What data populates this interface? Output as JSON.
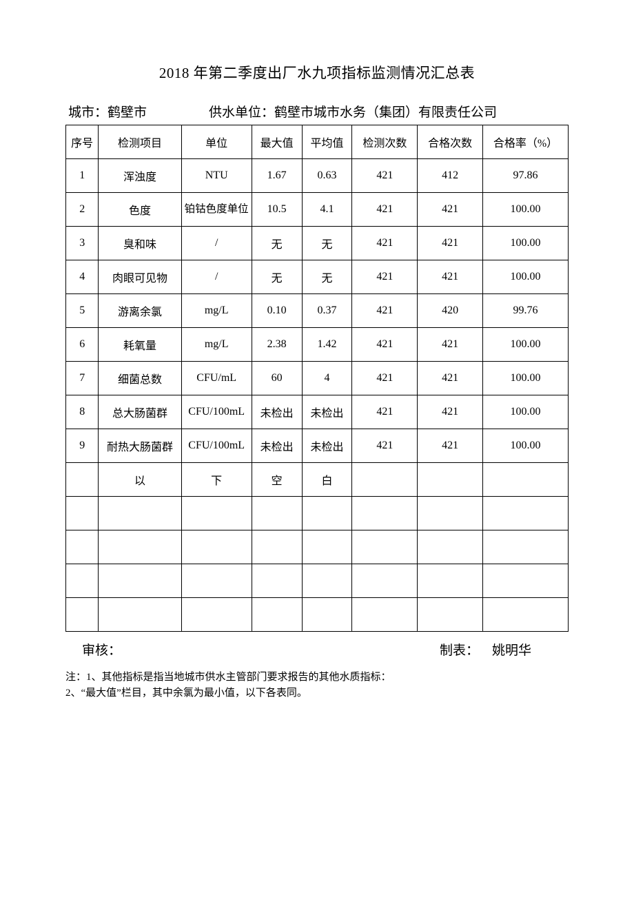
{
  "title": "2018 年第二季度出厂水九项指标监测情况汇总表",
  "meta": {
    "city_label": "城市：",
    "city_value": "鹤壁市",
    "supplier_label": "供水单位：",
    "supplier_value": "鹤壁市城市水务（集团）有限责任公司"
  },
  "columns": {
    "seq": "序号",
    "item": "检测项目",
    "unit": "单位",
    "max": "最大值",
    "avg": "平均值",
    "tests": "检测次数",
    "pass": "合格次数",
    "rate": "合格率（%）"
  },
  "rows": [
    {
      "seq": "1",
      "item": "浑浊度",
      "unit": "NTU",
      "max": "1.67",
      "avg": "0.63",
      "tests": "421",
      "pass": "412",
      "rate": "97.86"
    },
    {
      "seq": "2",
      "item": "色度",
      "unit": "铂钴色度单位",
      "max": "10.5",
      "avg": "4.1",
      "tests": "421",
      "pass": "421",
      "rate": "100.00"
    },
    {
      "seq": "3",
      "item": "臭和味",
      "unit": "/",
      "max": "无",
      "avg": "无",
      "tests": "421",
      "pass": "421",
      "rate": "100.00"
    },
    {
      "seq": "4",
      "item": "肉眼可见物",
      "unit": "/",
      "max": "无",
      "avg": "无",
      "tests": "421",
      "pass": "421",
      "rate": "100.00"
    },
    {
      "seq": "5",
      "item": "游离余氯",
      "unit": "mg/L",
      "max": "0.10",
      "avg": "0.37",
      "tests": "421",
      "pass": "420",
      "rate": "99.76"
    },
    {
      "seq": "6",
      "item": "耗氧量",
      "unit": "mg/L",
      "max": "2.38",
      "avg": "1.42",
      "tests": "421",
      "pass": "421",
      "rate": "100.00"
    },
    {
      "seq": "7",
      "item": "细菌总数",
      "unit": "CFU/mL",
      "max": "60",
      "avg": "4",
      "tests": "421",
      "pass": "421",
      "rate": "100.00"
    },
    {
      "seq": "8",
      "item": "总大肠菌群",
      "unit": "CFU/100mL",
      "max": "未检出",
      "avg": "未检出",
      "tests": "421",
      "pass": "421",
      "rate": "100.00"
    },
    {
      "seq": "9",
      "item": "耐热大肠菌群",
      "unit": "CFU/100mL",
      "max": "未检出",
      "avg": "未检出",
      "tests": "421",
      "pass": "421",
      "rate": "100.00"
    }
  ],
  "blank_marker": {
    "c1": "",
    "c2": "以",
    "c3": "下",
    "c4": "空",
    "c5": "白",
    "c6": "",
    "c7": "",
    "c8": ""
  },
  "empty_rows_after": 4,
  "signatures": {
    "reviewer_label": "审核：",
    "reviewer_name": "",
    "preparer_label": "制表：",
    "preparer_name": "姚明华"
  },
  "notes": {
    "line1": "注：1、其他指标是指当地城市供水主管部门要求报告的其他水质指标：",
    "line2": "2、“最大值”栏目，其中余氯为最小值，以下各表同。"
  }
}
